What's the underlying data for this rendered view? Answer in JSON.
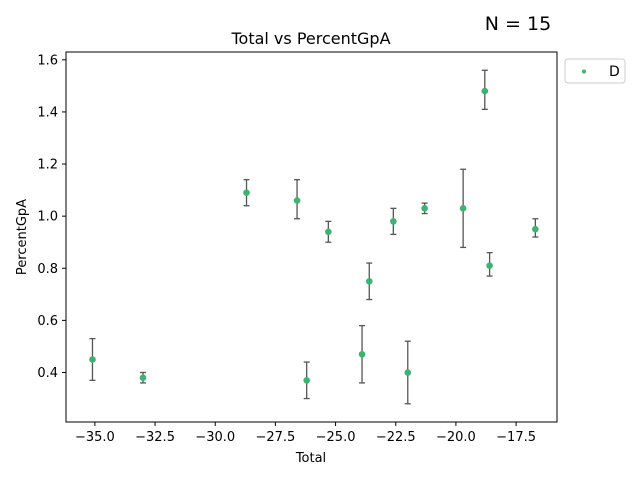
{
  "chart_data": {
    "type": "scatter",
    "title": "Total vs PercentGpA",
    "annotation": "N = 15",
    "xlabel": "Total",
    "ylabel": "PercentGpA",
    "xlim": [
      -36.2,
      -15.8
    ],
    "ylim": [
      0.21,
      1.63
    ],
    "xticks": [
      -35.0,
      -32.5,
      -30.0,
      -27.5,
      -25.0,
      -22.5,
      -20.0,
      -17.5
    ],
    "xtick_labels": [
      "−35.0",
      "−32.5",
      "−30.0",
      "−27.5",
      "−25.0",
      "−22.5",
      "−20.0",
      "−17.5"
    ],
    "yticks": [
      0.4,
      0.6,
      0.8,
      1.0,
      1.2,
      1.4,
      1.6
    ],
    "ytick_labels": [
      "0.4",
      "0.6",
      "0.8",
      "1.0",
      "1.2",
      "1.4",
      "1.6"
    ],
    "grid": false,
    "legend_position": "outside-top-right",
    "series": [
      {
        "name": "D",
        "color": "#3cb371",
        "errorbar_color": "#555555",
        "points": [
          {
            "x": -35.1,
            "y": 0.45,
            "ylow": 0.37,
            "yhigh": 0.53
          },
          {
            "x": -33.0,
            "y": 0.38,
            "ylow": 0.36,
            "yhigh": 0.4
          },
          {
            "x": -28.7,
            "y": 1.09,
            "ylow": 1.04,
            "yhigh": 1.14
          },
          {
            "x": -26.6,
            "y": 1.06,
            "ylow": 0.99,
            "yhigh": 1.14
          },
          {
            "x": -26.2,
            "y": 0.37,
            "ylow": 0.3,
            "yhigh": 0.44
          },
          {
            "x": -25.3,
            "y": 0.94,
            "ylow": 0.9,
            "yhigh": 0.98
          },
          {
            "x": -23.9,
            "y": 0.47,
            "ylow": 0.36,
            "yhigh": 0.58
          },
          {
            "x": -23.6,
            "y": 0.75,
            "ylow": 0.68,
            "yhigh": 0.82
          },
          {
            "x": -22.6,
            "y": 0.98,
            "ylow": 0.93,
            "yhigh": 1.03
          },
          {
            "x": -22.0,
            "y": 0.4,
            "ylow": 0.28,
            "yhigh": 0.52
          },
          {
            "x": -21.3,
            "y": 1.03,
            "ylow": 1.01,
            "yhigh": 1.05
          },
          {
            "x": -19.7,
            "y": 1.03,
            "ylow": 0.88,
            "yhigh": 1.18
          },
          {
            "x": -18.8,
            "y": 1.48,
            "ylow": 1.41,
            "yhigh": 1.56
          },
          {
            "x": -18.6,
            "y": 0.81,
            "ylow": 0.77,
            "yhigh": 0.86
          },
          {
            "x": -16.7,
            "y": 0.95,
            "ylow": 0.92,
            "yhigh": 0.99
          }
        ]
      }
    ]
  }
}
